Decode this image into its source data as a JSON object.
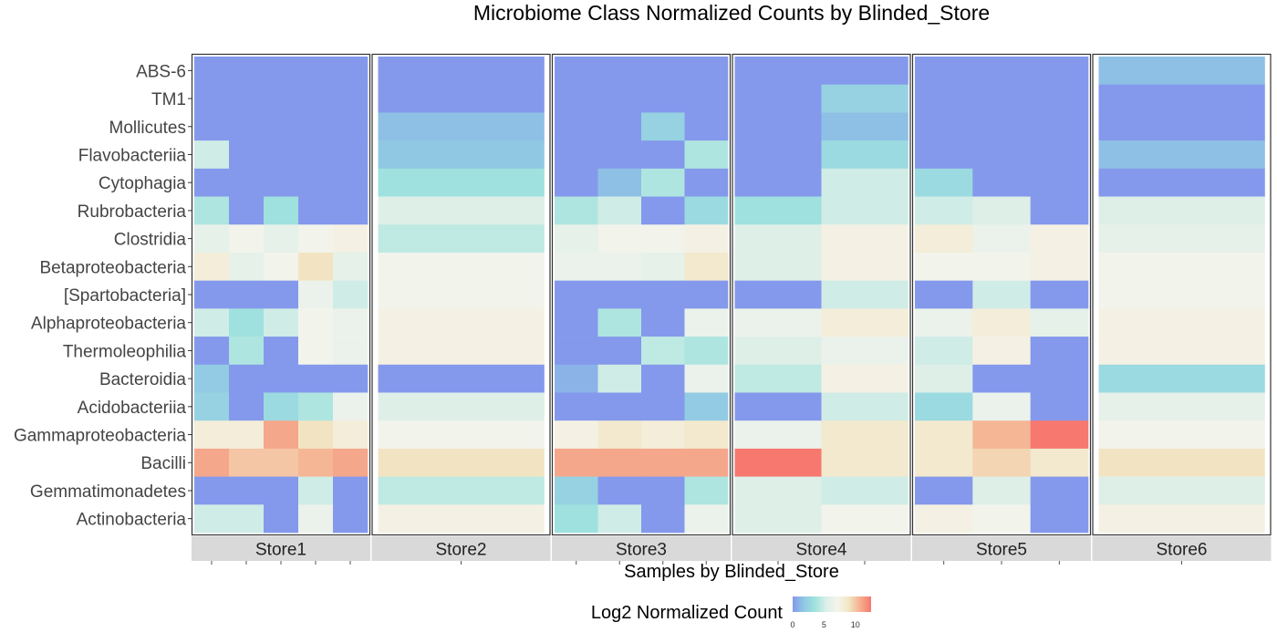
{
  "chart_data": {
    "type": "heatmap",
    "title": "Microbiome Class Normalized Counts by Blinded_Store",
    "xlabel": "Samples by Blinded_Store",
    "legend": {
      "title": "Log2 Normalized Count",
      "ticks": [
        0,
        5,
        10
      ],
      "placement": "bottom",
      "range": [
        0,
        12.5
      ],
      "colors": [
        "#8499ec",
        "#90c8e4",
        "#a0e2de",
        "#dcefe8",
        "#f4f4ec",
        "#f2e6c4",
        "#f5b090",
        "#f6786f"
      ]
    },
    "rows": [
      "ABS-6",
      "TM1",
      "Mollicutes",
      "Flavobacteriia",
      "Cytophagia",
      "Rubrobacteria",
      "Clostridia",
      "Betaproteobacteria",
      "[Spartobacteria]",
      "Alphaproteobacteria",
      "Thermoleophilia",
      "Bacteroidia",
      "Acidobacteriia",
      "Gammaproteobacteria",
      "Bacilli",
      "Gemmatimonadetes",
      "Actinobacteria"
    ],
    "facets": [
      {
        "store": "Store1",
        "samples": 5,
        "values": [
          [
            0,
            0,
            0,
            0,
            0
          ],
          [
            0,
            0,
            0,
            0,
            0
          ],
          [
            0,
            0,
            0,
            0,
            0
          ],
          [
            5,
            0,
            0,
            0,
            0
          ],
          [
            0,
            0,
            0,
            0,
            0
          ],
          [
            4,
            0,
            3.5,
            0,
            0
          ],
          [
            6,
            7,
            6,
            7,
            7.5
          ],
          [
            8,
            6,
            7,
            9,
            6
          ],
          [
            0,
            0,
            0,
            6.5,
            5
          ],
          [
            5,
            3.5,
            5,
            7,
            6.5
          ],
          [
            0,
            4,
            0,
            7,
            6.5
          ],
          [
            2,
            0,
            0,
            0,
            0
          ],
          [
            2.5,
            0,
            3,
            4,
            6.5
          ],
          [
            8,
            8,
            11,
            9,
            8
          ],
          [
            11,
            10,
            10,
            10.5,
            11
          ],
          [
            0,
            0,
            0,
            5,
            0
          ],
          [
            5,
            5,
            0,
            6.5,
            0
          ]
        ]
      },
      {
        "store": "Store2",
        "samples": 1,
        "values": [
          [
            0
          ],
          [
            0
          ],
          [
            1.5
          ],
          [
            1.8
          ],
          [
            3.5
          ],
          [
            5.5
          ],
          [
            4.5
          ],
          [
            7
          ],
          [
            7
          ],
          [
            7.5
          ],
          [
            7.5
          ],
          [
            0
          ],
          [
            5.5
          ],
          [
            7
          ],
          [
            9
          ],
          [
            4.5
          ],
          [
            7.5
          ]
        ]
      },
      {
        "store": "Store3",
        "samples": 4,
        "values": [
          [
            0,
            0,
            0,
            0
          ],
          [
            0,
            0,
            0,
            0
          ],
          [
            0,
            0,
            2.5,
            0
          ],
          [
            0,
            0,
            0,
            4
          ],
          [
            0,
            1.5,
            4,
            0
          ],
          [
            4,
            5,
            0,
            3
          ],
          [
            6,
            7,
            7,
            7.5
          ],
          [
            6.5,
            6.5,
            6,
            8.5
          ],
          [
            0,
            0,
            0,
            0
          ],
          [
            0,
            4,
            0,
            6.5
          ],
          [
            0,
            0,
            4.5,
            4
          ],
          [
            1,
            5,
            0,
            6.5
          ],
          [
            0,
            0,
            0,
            2
          ],
          [
            7.5,
            8.5,
            8,
            8.5
          ],
          [
            11,
            11,
            11,
            11
          ],
          [
            2.5,
            0,
            0,
            4
          ],
          [
            3.5,
            5,
            0,
            6.5
          ]
        ]
      },
      {
        "store": "Store4",
        "samples": 2,
        "values": [
          [
            0,
            0
          ],
          [
            0,
            2.5
          ],
          [
            0,
            1.5
          ],
          [
            0,
            3
          ],
          [
            0,
            5
          ],
          [
            3.5,
            5
          ],
          [
            5.5,
            7.5
          ],
          [
            5.5,
            7.5
          ],
          [
            0,
            5
          ],
          [
            6.5,
            8
          ],
          [
            5.5,
            6.5
          ],
          [
            4.5,
            7.5
          ],
          [
            0,
            5
          ],
          [
            6.5,
            8.5
          ],
          [
            12.5,
            8.5
          ],
          [
            5.5,
            5
          ],
          [
            5.5,
            7
          ]
        ]
      },
      {
        "store": "Store5",
        "samples": 3,
        "values": [
          [
            0,
            0,
            0
          ],
          [
            0,
            0,
            0
          ],
          [
            0,
            0,
            0
          ],
          [
            0,
            0,
            0
          ],
          [
            3,
            0,
            0
          ],
          [
            5,
            5.5,
            0
          ],
          [
            8,
            6.5,
            7.5
          ],
          [
            7,
            7,
            7.5
          ],
          [
            0,
            5,
            0
          ],
          [
            6.5,
            8,
            6
          ],
          [
            5,
            7.5,
            0
          ],
          [
            5.5,
            0,
            0
          ],
          [
            3,
            6.5,
            0
          ],
          [
            8.5,
            10.5,
            12.5
          ],
          [
            8.5,
            9.5,
            8.5
          ],
          [
            0,
            5.5,
            0
          ],
          [
            7.5,
            7,
            0
          ]
        ]
      },
      {
        "store": "Store6",
        "samples": 1,
        "values": [
          [
            1.5
          ],
          [
            0
          ],
          [
            0
          ],
          [
            1.5
          ],
          [
            0
          ],
          [
            5.5
          ],
          [
            6
          ],
          [
            7
          ],
          [
            7
          ],
          [
            7.5
          ],
          [
            7.5
          ],
          [
            3
          ],
          [
            6
          ],
          [
            7
          ],
          [
            9
          ],
          [
            5.5
          ],
          [
            7.5
          ]
        ]
      }
    ]
  }
}
